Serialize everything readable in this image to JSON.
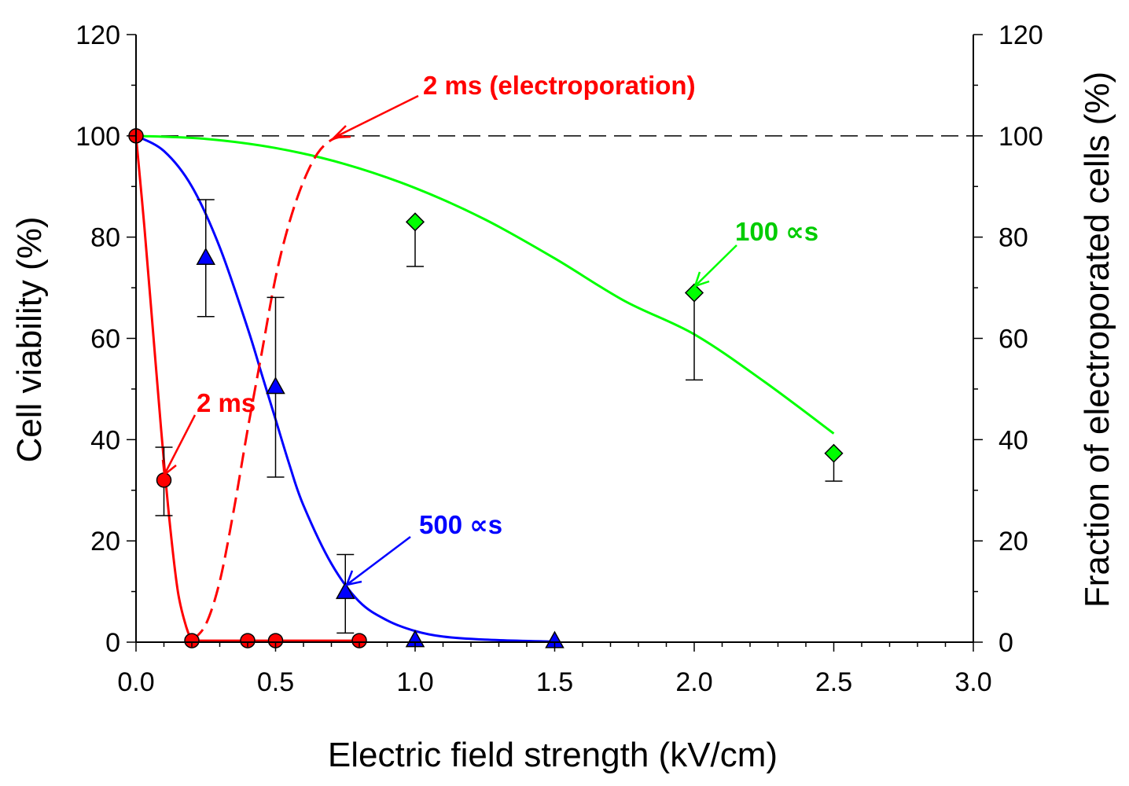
{
  "chart_data": {
    "type": "scatter",
    "xlabel": "Electric field strength (kV/cm)",
    "ylabel": "Cell viability (%)",
    "y2label": "Fraction of electroporated cells (%)",
    "xlim": [
      0,
      3.0
    ],
    "ylim": [
      0,
      120
    ],
    "y2lim": [
      0,
      120
    ],
    "x_ticks": [
      "0.0",
      "0.5",
      "1.0",
      "1.5",
      "2.0",
      "2.5",
      "3.0"
    ],
    "y_ticks": [
      "0",
      "20",
      "40",
      "60",
      "80",
      "100",
      "120"
    ],
    "y2_ticks": [
      "0",
      "20",
      "40",
      "60",
      "80",
      "100",
      "120"
    ],
    "reference_line": {
      "y": 100,
      "style": "dashed"
    },
    "series": [
      {
        "name": "2 ms",
        "color": "#ff0000",
        "marker": "circle",
        "points": [
          {
            "x": 0.0,
            "y": 100
          },
          {
            "x": 0.1,
            "y": 32,
            "err_lo": 25,
            "err_hi": 38.5
          },
          {
            "x": 0.2,
            "y": 0.3
          },
          {
            "x": 0.4,
            "y": 0.3
          },
          {
            "x": 0.5,
            "y": 0.3
          },
          {
            "x": 0.8,
            "y": 0.3
          }
        ],
        "fit": [
          [
            0.0,
            100
          ],
          [
            0.03,
            82
          ],
          [
            0.06,
            62
          ],
          [
            0.09,
            42
          ],
          [
            0.12,
            24
          ],
          [
            0.15,
            10
          ],
          [
            0.18,
            3
          ],
          [
            0.2,
            0.3
          ],
          [
            0.8,
            0.3
          ]
        ]
      },
      {
        "name": "500 ∝s",
        "color": "#0000ff",
        "marker": "triangle",
        "points": [
          {
            "x": 0.25,
            "y": 76,
            "err_lo": 64.3,
            "err_hi": 87.4
          },
          {
            "x": 0.5,
            "y": 50.5,
            "err_lo": 32.6,
            "err_hi": 68.1
          },
          {
            "x": 0.75,
            "y": 10,
            "err_lo": 1.8,
            "err_hi": 17.3
          },
          {
            "x": 1.0,
            "y": 0.5
          },
          {
            "x": 1.5,
            "y": 0.3
          }
        ],
        "fit": [
          [
            0.0,
            100
          ],
          [
            0.1,
            97
          ],
          [
            0.2,
            90
          ],
          [
            0.3,
            78
          ],
          [
            0.4,
            62
          ],
          [
            0.45,
            53
          ],
          [
            0.5,
            44
          ],
          [
            0.55,
            35
          ],
          [
            0.6,
            27
          ],
          [
            0.7,
            15.5
          ],
          [
            0.8,
            8
          ],
          [
            0.9,
            4.3
          ],
          [
            1.0,
            2.2
          ],
          [
            1.1,
            1.1
          ],
          [
            1.25,
            0.5
          ],
          [
            1.5,
            0.1
          ]
        ]
      },
      {
        "name": "100 ∝s",
        "color": "#00ff00",
        "marker": "diamond",
        "points": [
          {
            "x": 1.0,
            "y": 83,
            "err_lo": 74.2,
            "err_hi": 83
          },
          {
            "x": 2.0,
            "y": 69,
            "err_lo": 51.8,
            "err_hi": 69
          },
          {
            "x": 2.5,
            "y": 37.3,
            "err_lo": 31.8,
            "err_hi": 37.3
          }
        ],
        "fit": [
          [
            0.0,
            100
          ],
          [
            0.25,
            99.4
          ],
          [
            0.5,
            97.6
          ],
          [
            0.75,
            94.4
          ],
          [
            1.0,
            89.7
          ],
          [
            1.25,
            83.5
          ],
          [
            1.5,
            75.8
          ],
          [
            1.75,
            67.4
          ],
          [
            2.0,
            60.8
          ],
          [
            2.25,
            51.5
          ],
          [
            2.5,
            41.2
          ]
        ]
      },
      {
        "name": "2 ms (electroporation)",
        "color": "#ff0000",
        "axis": "right",
        "style": "dashed",
        "fit": [
          [
            0.2,
            0.3
          ],
          [
            0.25,
            3.5
          ],
          [
            0.3,
            12
          ],
          [
            0.35,
            26
          ],
          [
            0.4,
            42
          ],
          [
            0.45,
            57
          ],
          [
            0.5,
            72
          ],
          [
            0.55,
            83
          ],
          [
            0.6,
            91
          ],
          [
            0.65,
            96.5
          ],
          [
            0.7,
            99.2
          ],
          [
            0.75,
            100
          ]
        ]
      }
    ],
    "annotations": [
      {
        "text": "2 ms (electroporation)",
        "color": "#ff0000",
        "arrow_to": {
          "x": 0.71,
          "y": 99.5
        }
      },
      {
        "text": "2 ms",
        "color": "#ff0000",
        "arrow_to": {
          "x": 0.1,
          "y": 33
        }
      },
      {
        "text": "500 ∝s",
        "color": "#0000ff",
        "arrow_to": {
          "x": 0.76,
          "y": 11
        }
      },
      {
        "text": "100 ∝s",
        "color": "#00cc00",
        "arrow_to": {
          "x": 2.02,
          "y": 70
        }
      }
    ]
  }
}
